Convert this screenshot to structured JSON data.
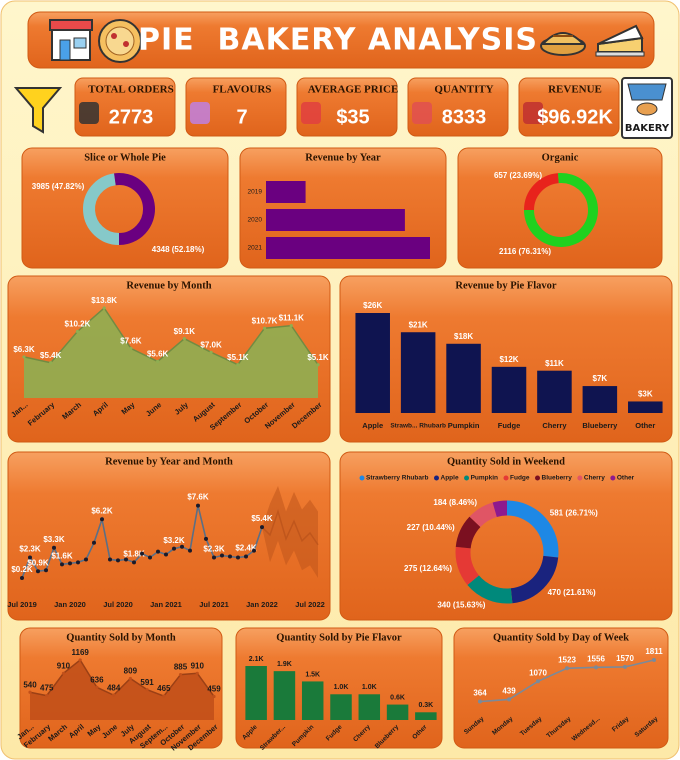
{
  "header": {
    "title": "PIE  BAKERY ANALYSIS",
    "badge": "BAKERY"
  },
  "kpis": [
    {
      "label": "TOTAL ORDERS",
      "value": "2773"
    },
    {
      "label": "FLAVOURS",
      "value": "7"
    },
    {
      "label": "AVERAGE PRICE",
      "value": "$35"
    },
    {
      "label": "QUANTITY",
      "value": "8333"
    },
    {
      "label": "REVENUE",
      "value": "$96.92K"
    }
  ],
  "chart_data": [
    {
      "type": "donut",
      "title": "Slice or Whole Pie",
      "values": [
        3985,
        4348
      ],
      "value_labels": [
        "3985 (47.82%)",
        "4348 (52.18%)"
      ],
      "colors": [
        "#86c9c9",
        "#6a0080"
      ]
    },
    {
      "type": "hbar",
      "title": "Revenue by Year",
      "categories": [
        "2019",
        "2020",
        "2021"
      ],
      "values": [
        11200,
        39300,
        46400
      ],
      "color": "#6a0080"
    },
    {
      "type": "donut",
      "title": "Organic",
      "values": [
        657,
        2116
      ],
      "value_labels": [
        "657 (23.69%)",
        "2116 (76.31%)"
      ],
      "colors": [
        "#e8231c",
        "#1fd11f"
      ]
    },
    {
      "type": "area",
      "title": "Revenue by Month",
      "categories": [
        "Jan...",
        "February",
        "March",
        "April",
        "May",
        "June",
        "July",
        "August",
        "September",
        "October",
        "November",
        "December"
      ],
      "values": [
        6300,
        5400,
        10200,
        13800,
        7600,
        5600,
        9100,
        7000,
        5100,
        10700,
        11100,
        5100
      ],
      "value_labels": [
        "$6.3K",
        "$5.4K",
        "$10.2K",
        "$13.8K",
        "$7.6K",
        "$5.6K",
        "$9.1K",
        "$7.0K",
        "$5.1K",
        "$10.7K",
        "$11.1K",
        "$5.1K"
      ],
      "color": "#8fae52"
    },
    {
      "type": "bar",
      "title": "Revenue by Pie Flavor",
      "categories": [
        "Apple",
        "Strawb... Rhubarb",
        "Pumpkin",
        "Fudge",
        "Cherry",
        "Blueberry",
        "Other"
      ],
      "values": [
        26000,
        21000,
        18000,
        12000,
        11000,
        7000,
        3000
      ],
      "value_labels": [
        "$26K",
        "$21K",
        "$18K",
        "$12K",
        "$11K",
        "$7K",
        "$3K"
      ],
      "color": "#0f1450"
    },
    {
      "type": "line",
      "title": "Revenue by Year and Month",
      "categories": [
        "Jul 2019",
        null,
        null,
        null,
        null,
        null,
        "Jan 2020",
        null,
        null,
        null,
        null,
        null,
        "Jul 2020",
        null,
        null,
        null,
        null,
        null,
        "Jan 2021",
        null,
        null,
        null,
        null,
        null,
        "Jul 2021",
        null,
        null,
        null,
        null,
        null,
        "Jan 2022",
        null,
        null,
        null,
        null,
        null,
        "Jul 2022",
        null
      ],
      "values": [
        200,
        2300,
        900,
        1000,
        3300,
        1600,
        1700,
        1800,
        2100,
        3800,
        6200,
        2100,
        2000,
        2100,
        1800,
        2700,
        2300,
        2900,
        2600,
        3200,
        3400,
        3000,
        7600,
        4200,
        2300,
        2500,
        2400,
        2300,
        2400,
        3000,
        5400,
        null,
        null,
        null,
        null,
        null,
        null,
        null
      ],
      "value_labels": [
        "$0.2K",
        "$2.3K",
        "$0.9K",
        null,
        "$3.3K",
        "$1.6K",
        null,
        null,
        null,
        null,
        "$6.2K",
        null,
        null,
        null,
        "$1.8K",
        null,
        null,
        null,
        null,
        "$3.2K",
        null,
        null,
        "$7.6K",
        null,
        "$2.3K",
        null,
        null,
        null,
        "$2.4K",
        null,
        "$5.4K",
        null,
        null,
        null,
        null,
        null,
        null,
        null
      ],
      "color": "#5a6f86",
      "forecast": {
        "color": "#c0561c",
        "values": [
          null,
          null,
          null,
          null,
          null,
          null,
          null,
          null,
          null,
          null,
          null,
          null,
          null,
          null,
          null,
          null,
          null,
          null,
          null,
          null,
          null,
          null,
          null,
          null,
          null,
          null,
          null,
          null,
          null,
          null,
          null,
          4600,
          7000,
          4200,
          6000,
          4000,
          4800,
          3600
        ],
        "upper": [
          null,
          null,
          null,
          null,
          null,
          null,
          null,
          null,
          null,
          null,
          null,
          null,
          null,
          null,
          null,
          null,
          null,
          null,
          null,
          null,
          null,
          null,
          null,
          null,
          null,
          null,
          null,
          null,
          null,
          null,
          null,
          7800,
          9600,
          7000,
          9000,
          7200,
          8200,
          7000
        ],
        "lower": [
          null,
          null,
          null,
          null,
          null,
          null,
          null,
          null,
          null,
          null,
          null,
          null,
          null,
          null,
          null,
          null,
          null,
          null,
          null,
          null,
          null,
          null,
          null,
          null,
          null,
          null,
          null,
          null,
          null,
          null,
          null,
          1800,
          4000,
          1500,
          3000,
          1000,
          1500,
          200
        ]
      }
    },
    {
      "type": "donut",
      "title": "Quantity Sold in Weekend",
      "categories": [
        "Strawberry Rhubarb",
        "Apple",
        "Pumpkin",
        "Fudge",
        "Blueberry",
        "Cherry",
        "Other"
      ],
      "values": [
        581,
        470,
        340,
        275,
        227,
        184,
        98
      ],
      "value_labels": [
        "581 (26.71%)",
        "470 (21.61%)",
        "340 (15.63%)",
        "275 (12.64%)",
        "227 (10.44%)",
        "184 (8.46%)",
        null
      ],
      "colors": [
        "#1e88e5",
        "#1a237e",
        "#00897b",
        "#e53935",
        "#7b1020",
        "#e05565",
        "#8e1a8e"
      ]
    },
    {
      "type": "area",
      "title": "Quantity Sold by Month",
      "categories": [
        "Jan...",
        "February",
        "March",
        "April",
        "May",
        "June",
        "July",
        "August",
        "Septem...",
        "October",
        "November",
        "December"
      ],
      "values": [
        540,
        475,
        910,
        1169,
        636,
        484,
        809,
        591,
        465,
        885,
        910,
        459
      ],
      "value_labels": [
        "540",
        "475",
        "910",
        "1169",
        "636",
        "484",
        "809",
        "591",
        "465",
        "885",
        "910",
        "459"
      ],
      "color": "#c2501a"
    },
    {
      "type": "bar",
      "title": "Quantity Sold by Pie Flavor",
      "categories": [
        "Apple",
        "Strawber...",
        "Pumpkin",
        "Fudge",
        "Cherry",
        "Blueberry",
        "Other"
      ],
      "values": [
        2100,
        1900,
        1500,
        1000,
        1000,
        600,
        300
      ],
      "value_labels": [
        "2.1K",
        "1.9K",
        "1.5K",
        "1.0K",
        "1.0K",
        "0.6K",
        "0.3K"
      ],
      "color": "#1a7a3a"
    },
    {
      "type": "line",
      "title": "Quantity Sold by Day of Week",
      "categories": [
        "Sunday",
        "Monday",
        "Tuesday",
        "Thursday",
        "Wednesd...",
        "Friday",
        "Saturday"
      ],
      "values": [
        364,
        439,
        1070,
        1523,
        1556,
        1570,
        1811
      ],
      "value_labels": [
        "364",
        "439",
        "1070",
        "1523",
        "1556",
        "1570",
        "1811"
      ],
      "color": "#7a8a9a"
    }
  ]
}
